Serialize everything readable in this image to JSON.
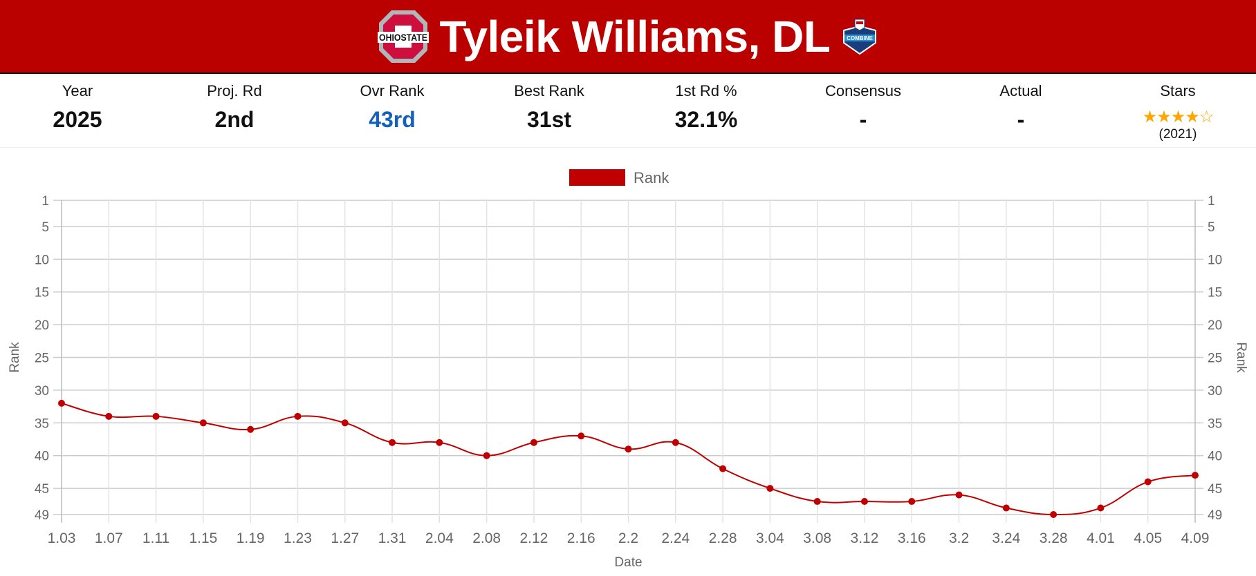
{
  "header": {
    "title": "Tyleik Williams, DL",
    "school_logo": "OHIO STATE",
    "combine_logo": "COMBINE",
    "color": "#bb0000"
  },
  "stats": [
    {
      "label": "Year",
      "value": "2025"
    },
    {
      "label": "Proj. Rd",
      "value": "2nd"
    },
    {
      "label": "Ovr Rank",
      "value": "43rd",
      "highlight": "#1560bd"
    },
    {
      "label": "Best Rank",
      "value": "31st"
    },
    {
      "label": "1st Rd %",
      "value": "32.1%"
    },
    {
      "label": "Consensus",
      "value": "-"
    },
    {
      "label": "Actual",
      "value": "-"
    },
    {
      "label": "Stars",
      "value": "★★★★☆",
      "rating": 4,
      "max": 5,
      "year": "(2021)"
    }
  ],
  "chart_data": {
    "type": "line",
    "legend": {
      "label": "Rank",
      "placement": "top"
    },
    "xlabel": "Date",
    "ylabel": "Rank",
    "ylabel_right": "Rank",
    "y_reversed": true,
    "ylim": [
      1,
      49
    ],
    "yticks": [
      1,
      5,
      10,
      15,
      20,
      25,
      30,
      35,
      40,
      45,
      49
    ],
    "grid": true,
    "color": "#c00000",
    "x": [
      "1.03",
      "1.07",
      "1.11",
      "1.15",
      "1.19",
      "1.23",
      "1.27",
      "1.31",
      "2.04",
      "2.08",
      "2.12",
      "2.16",
      "2.2",
      "2.24",
      "2.28",
      "3.04",
      "3.08",
      "3.12",
      "3.16",
      "3.2",
      "3.24",
      "3.28",
      "4.01",
      "4.05",
      "4.09"
    ],
    "series": [
      {
        "name": "Rank",
        "values": [
          32,
          34,
          34,
          35,
          36,
          34,
          35,
          38,
          38,
          40,
          38,
          37,
          39,
          38,
          42,
          45,
          47,
          47,
          47,
          46,
          48,
          49,
          48,
          44,
          43
        ]
      }
    ]
  }
}
